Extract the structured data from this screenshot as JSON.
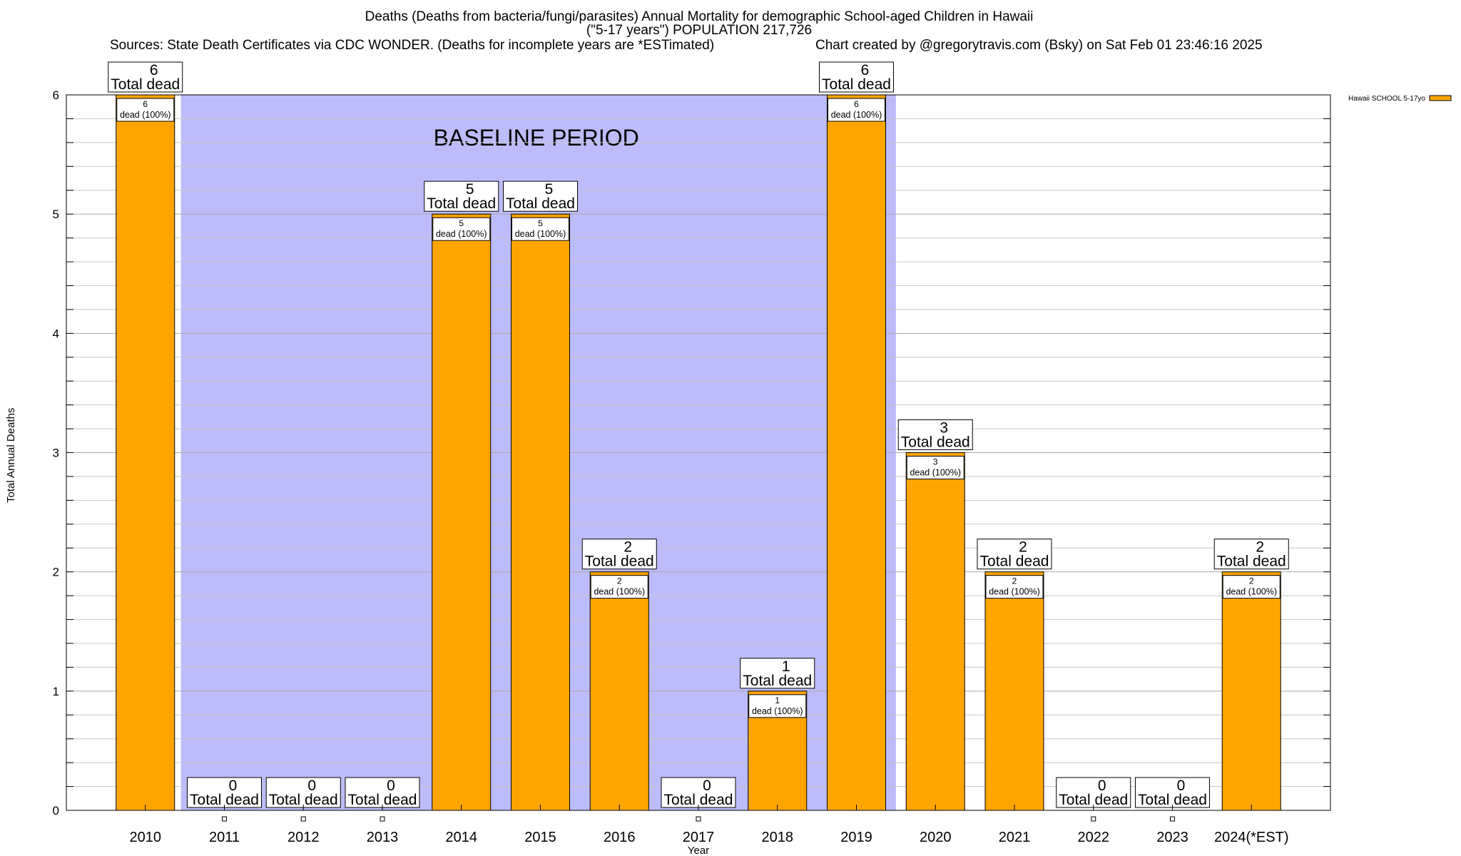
{
  "header": {
    "title_line1": "Deaths (Deaths from bacteria/fungi/parasites) Annual Mortality for demographic School-aged Children in Hawaii",
    "title_line2": "(\"5-17 years\") POPULATION 217,726",
    "sources": "Sources: State Death Certificates via CDC WONDER. (Deaths for incomplete years are *ESTimated)",
    "credit": "Chart created by @gregorytravis.com (Bsky) on Sat Feb 01 23:46:16 2025"
  },
  "colors": {
    "bar_fill": "#ffa500",
    "baseline_shade": "#bcbcfa",
    "axis": "#000000",
    "grid": "#c8c8c8"
  },
  "chart_data": {
    "type": "bar",
    "title": "Deaths (Deaths from bacteria/fungi/parasites) Annual Mortality for demographic School-aged Children in Hawaii",
    "xlabel": "Year",
    "ylabel": "Total Annual Deaths",
    "categories": [
      "2010",
      "2011",
      "2012",
      "2013",
      "2014",
      "2015",
      "2016",
      "2017",
      "2018",
      "2019",
      "2020",
      "2021",
      "2022",
      "2023",
      "2024(*EST)"
    ],
    "series": [
      {
        "name": "Hawaii SCHOOL 5-17yo",
        "values": [
          6,
          0,
          0,
          0,
          5,
          5,
          2,
          0,
          1,
          6,
          3,
          2,
          0,
          0,
          2
        ]
      }
    ],
    "ylim": [
      0,
      6
    ],
    "yticks": [
      0,
      1,
      2,
      3,
      4,
      5,
      6
    ],
    "grid": true,
    "legend": "top-right",
    "total_label_suffix": "Total dead",
    "bar_label_suffix": "dead (100%)",
    "baseline_period": {
      "label": "BASELINE PERIOD",
      "start": "2011",
      "end": "2019"
    }
  }
}
